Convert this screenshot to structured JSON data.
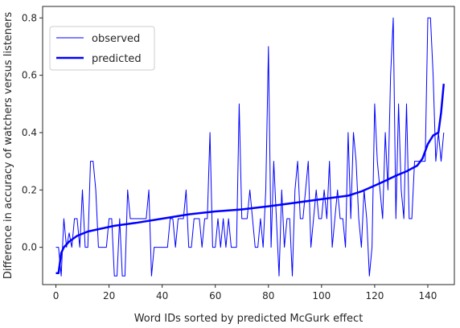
{
  "chart_data": {
    "type": "line",
    "xlabel": "Word IDs sorted by predicted McGurk effect",
    "ylabel": "Difference in accuracy of watchers versus listeners",
    "xlim": [
      -5,
      150
    ],
    "ylim": [
      -0.13,
      0.84
    ],
    "xticks": [
      0,
      20,
      40,
      60,
      80,
      100,
      120,
      140
    ],
    "yticks": [
      0.0,
      0.2,
      0.4,
      0.6,
      0.8
    ],
    "ytick_labels": [
      "0.0",
      "0.2",
      "0.4",
      "0.6",
      "0.8"
    ],
    "legend_position": "upper-left",
    "series": [
      {
        "name": "observed",
        "color": "#0000ff",
        "width": "thin",
        "x": [
          0,
          1,
          2,
          3,
          4,
          5,
          6,
          7,
          8,
          9,
          10,
          11,
          12,
          13,
          14,
          15,
          16,
          17,
          18,
          19,
          20,
          21,
          22,
          23,
          24,
          25,
          26,
          27,
          28,
          29,
          30,
          31,
          32,
          33,
          34,
          35,
          36,
          37,
          38,
          39,
          40,
          41,
          42,
          43,
          44,
          45,
          46,
          47,
          48,
          49,
          50,
          51,
          52,
          53,
          54,
          55,
          56,
          57,
          58,
          59,
          60,
          61,
          62,
          63,
          64,
          65,
          66,
          67,
          68,
          69,
          70,
          71,
          72,
          73,
          74,
          75,
          76,
          77,
          78,
          79,
          80,
          81,
          82,
          83,
          84,
          85,
          86,
          87,
          88,
          89,
          90,
          91,
          92,
          93,
          94,
          95,
          96,
          97,
          98,
          99,
          100,
          101,
          102,
          103,
          104,
          105,
          106,
          107,
          108,
          109,
          110,
          111,
          112,
          113,
          114,
          115,
          116,
          117,
          118,
          119,
          120,
          121,
          122,
          123,
          124,
          125,
          126,
          127,
          128,
          129,
          130,
          131,
          132,
          133,
          134,
          135,
          136,
          137,
          138,
          139,
          140,
          141,
          142,
          143,
          144,
          145,
          146
        ],
        "values": [
          0.0,
          0.0,
          -0.1,
          0.1,
          0.0,
          0.05,
          0.0,
          0.1,
          0.1,
          0.0,
          0.2,
          0.0,
          0.0,
          0.3,
          0.3,
          0.2,
          0.0,
          0.0,
          0.0,
          0.0,
          0.1,
          0.1,
          -0.1,
          -0.1,
          0.1,
          -0.1,
          -0.1,
          0.2,
          0.1,
          0.1,
          0.1,
          0.1,
          0.1,
          0.1,
          0.1,
          0.2,
          -0.1,
          0.0,
          0.0,
          0.0,
          0.0,
          0.0,
          0.0,
          0.1,
          0.1,
          0.0,
          0.1,
          0.1,
          0.1,
          0.2,
          0.0,
          0.0,
          0.1,
          0.1,
          0.1,
          0.0,
          0.1,
          0.1,
          0.4,
          0.0,
          0.0,
          0.1,
          0.0,
          0.1,
          0.0,
          0.1,
          0.0,
          0.0,
          0.0,
          0.5,
          0.1,
          0.1,
          0.1,
          0.2,
          0.1,
          0.0,
          0.0,
          0.1,
          0.0,
          0.2,
          0.7,
          0.0,
          0.3,
          0.1,
          -0.1,
          0.2,
          0.0,
          0.1,
          0.1,
          -0.1,
          0.2,
          0.3,
          0.1,
          0.1,
          0.2,
          0.3,
          0.0,
          0.1,
          0.2,
          0.1,
          0.1,
          0.2,
          0.1,
          0.3,
          0.0,
          0.1,
          0.2,
          0.1,
          0.1,
          0.0,
          0.4,
          0.1,
          0.4,
          0.3,
          0.1,
          0.0,
          0.2,
          0.1,
          -0.1,
          0.0,
          0.5,
          0.3,
          0.2,
          0.1,
          0.4,
          0.2,
          0.6,
          0.8,
          0.1,
          0.5,
          0.2,
          0.1,
          0.5,
          0.1,
          0.1,
          0.3,
          0.3,
          0.3,
          0.3,
          0.3,
          0.8,
          0.8,
          0.6,
          0.3,
          0.4,
          0.3,
          0.4
        ]
      },
      {
        "name": "predicted",
        "color": "#0000ff",
        "width": "thick",
        "x": [
          0,
          1,
          2,
          3,
          5,
          8,
          12,
          17,
          22,
          30,
          40,
          50,
          60,
          70,
          80,
          90,
          100,
          110,
          115,
          120,
          124,
          128,
          132,
          136,
          138,
          140,
          142,
          144,
          145,
          146
        ],
        "values": [
          -0.09,
          -0.09,
          -0.02,
          0.0,
          0.02,
          0.04,
          0.055,
          0.065,
          0.075,
          0.085,
          0.1,
          0.115,
          0.125,
          0.132,
          0.143,
          0.155,
          0.168,
          0.18,
          0.195,
          0.215,
          0.232,
          0.25,
          0.265,
          0.285,
          0.31,
          0.36,
          0.39,
          0.4,
          0.47,
          0.57
        ]
      }
    ]
  }
}
